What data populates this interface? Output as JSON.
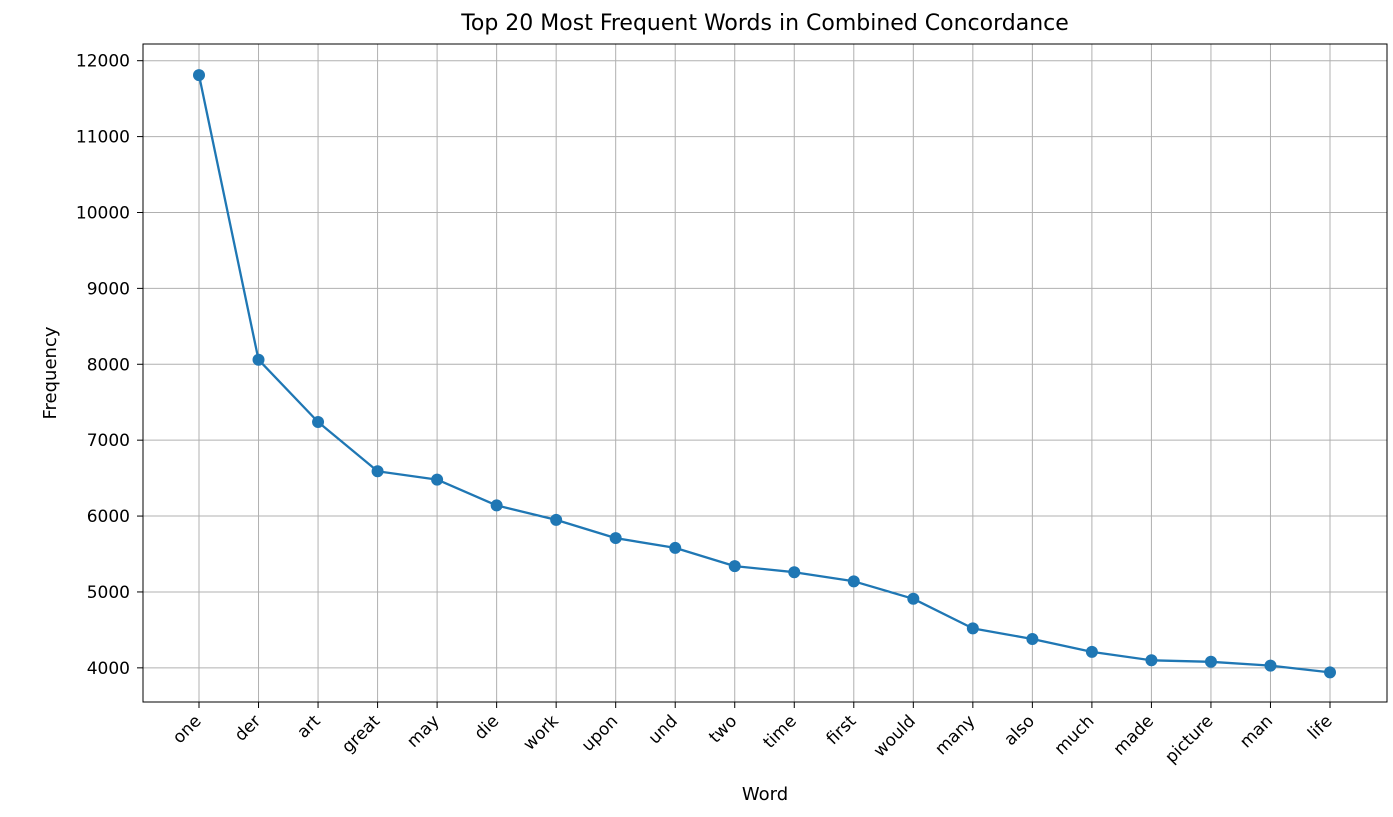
{
  "chart_data": {
    "type": "line",
    "title": "Top 20 Most Frequent Words in Combined Concordance",
    "xlabel": "Word",
    "ylabel": "Frequency",
    "categories": [
      "one",
      "der",
      "art",
      "great",
      "may",
      "die",
      "work",
      "upon",
      "und",
      "two",
      "time",
      "first",
      "would",
      "many",
      "also",
      "much",
      "made",
      "picture",
      "man",
      "life"
    ],
    "values": [
      11810,
      8060,
      7240,
      6590,
      6480,
      6140,
      5950,
      5710,
      5580,
      5340,
      5260,
      5140,
      4910,
      4520,
      4380,
      4210,
      4100,
      4080,
      4030,
      3940
    ],
    "ylim": [
      3550,
      12220
    ],
    "yticks": [
      4000,
      5000,
      6000,
      7000,
      8000,
      9000,
      10000,
      11000,
      12000
    ],
    "grid": true,
    "marker": "circle",
    "colors": {
      "line": "#1f77b4",
      "grid": "#b0b0b0",
      "axes": "#000000"
    }
  }
}
